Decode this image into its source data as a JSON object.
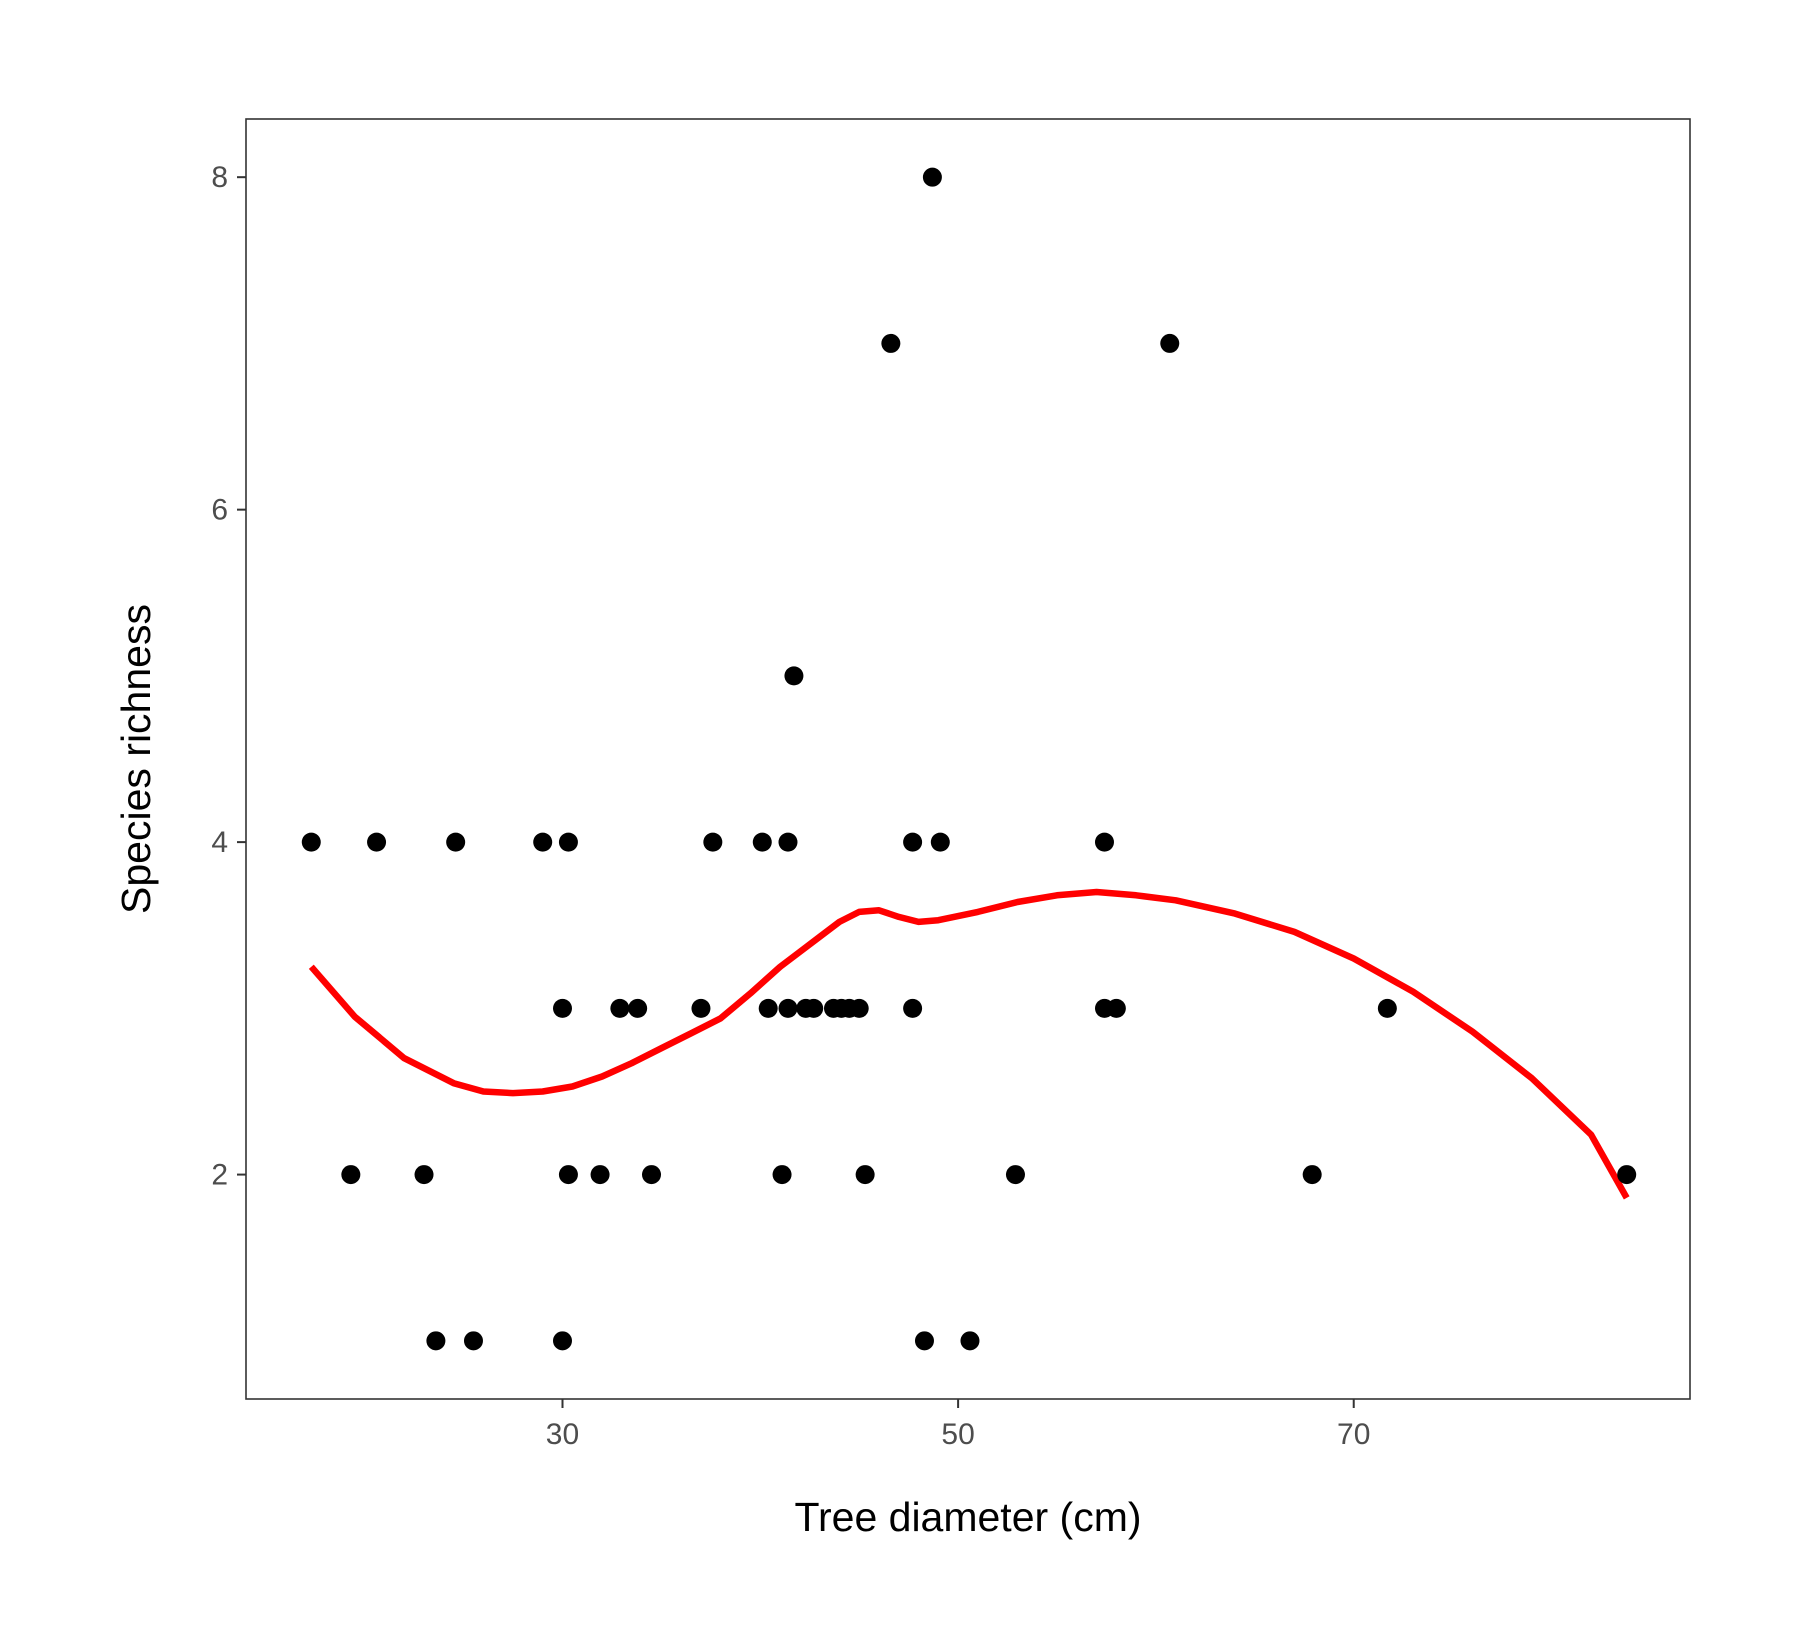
{
  "chart_data": {
    "type": "scatter",
    "title": "",
    "xlabel": "Tree diameter (cm)",
    "ylabel": "Species richness",
    "xlim": [
      14,
      87
    ],
    "ylim": [
      0.65,
      8.35
    ],
    "x_ticks": [
      30,
      50,
      70
    ],
    "y_ticks": [
      2,
      4,
      6,
      8
    ],
    "grid": false,
    "legend": "none",
    "point_color": "#000000",
    "series": [
      {
        "type": "scatter",
        "points": [
          {
            "x": 17.3,
            "y": 4
          },
          {
            "x": 20.6,
            "y": 4
          },
          {
            "x": 24.6,
            "y": 4
          },
          {
            "x": 29.0,
            "y": 4
          },
          {
            "x": 30.3,
            "y": 4
          },
          {
            "x": 37.6,
            "y": 4
          },
          {
            "x": 40.1,
            "y": 4
          },
          {
            "x": 41.4,
            "y": 4
          },
          {
            "x": 47.7,
            "y": 4
          },
          {
            "x": 49.1,
            "y": 4
          },
          {
            "x": 57.4,
            "y": 4
          },
          {
            "x": 30.0,
            "y": 3
          },
          {
            "x": 32.9,
            "y": 3
          },
          {
            "x": 33.8,
            "y": 3
          },
          {
            "x": 37.0,
            "y": 3
          },
          {
            "x": 40.4,
            "y": 3
          },
          {
            "x": 41.4,
            "y": 3
          },
          {
            "x": 42.3,
            "y": 3
          },
          {
            "x": 42.7,
            "y": 3
          },
          {
            "x": 43.7,
            "y": 3
          },
          {
            "x": 44.1,
            "y": 3
          },
          {
            "x": 44.5,
            "y": 3
          },
          {
            "x": 45.0,
            "y": 3
          },
          {
            "x": 47.7,
            "y": 3
          },
          {
            "x": 57.4,
            "y": 3
          },
          {
            "x": 58.0,
            "y": 3
          },
          {
            "x": 71.7,
            "y": 3
          },
          {
            "x": 19.3,
            "y": 2
          },
          {
            "x": 23.0,
            "y": 2
          },
          {
            "x": 30.3,
            "y": 2
          },
          {
            "x": 31.9,
            "y": 2
          },
          {
            "x": 34.5,
            "y": 2
          },
          {
            "x": 41.1,
            "y": 2
          },
          {
            "x": 45.3,
            "y": 2
          },
          {
            "x": 52.9,
            "y": 2
          },
          {
            "x": 67.9,
            "y": 2
          },
          {
            "x": 83.8,
            "y": 2
          },
          {
            "x": 23.6,
            "y": 1
          },
          {
            "x": 25.5,
            "y": 1
          },
          {
            "x": 30.0,
            "y": 1
          },
          {
            "x": 48.3,
            "y": 1
          },
          {
            "x": 50.6,
            "y": 1
          },
          {
            "x": 46.6,
            "y": 7
          },
          {
            "x": 60.7,
            "y": 7
          },
          {
            "x": 48.7,
            "y": 8
          },
          {
            "x": 41.7,
            "y": 5
          }
        ]
      },
      {
        "type": "line",
        "color": "#ff0000",
        "points": [
          {
            "x": 17.3,
            "y": 3.25
          },
          {
            "x": 19.5,
            "y": 2.95
          },
          {
            "x": 22.0,
            "y": 2.7
          },
          {
            "x": 24.5,
            "y": 2.55
          },
          {
            "x": 26.0,
            "y": 2.5
          },
          {
            "x": 27.5,
            "y": 2.49
          },
          {
            "x": 29.0,
            "y": 2.5
          },
          {
            "x": 30.5,
            "y": 2.53
          },
          {
            "x": 32.0,
            "y": 2.59
          },
          {
            "x": 33.5,
            "y": 2.67
          },
          {
            "x": 35.0,
            "y": 2.76
          },
          {
            "x": 36.5,
            "y": 2.85
          },
          {
            "x": 38.0,
            "y": 2.94
          },
          {
            "x": 39.5,
            "y": 3.09
          },
          {
            "x": 41.0,
            "y": 3.25
          },
          {
            "x": 42.0,
            "y": 3.34
          },
          {
            "x": 43.0,
            "y": 3.43
          },
          {
            "x": 44.0,
            "y": 3.52
          },
          {
            "x": 45.0,
            "y": 3.58
          },
          {
            "x": 46.0,
            "y": 3.59
          },
          {
            "x": 47.0,
            "y": 3.55
          },
          {
            "x": 48.0,
            "y": 3.52
          },
          {
            "x": 49.0,
            "y": 3.53
          },
          {
            "x": 51.0,
            "y": 3.58
          },
          {
            "x": 53.0,
            "y": 3.64
          },
          {
            "x": 55.0,
            "y": 3.68
          },
          {
            "x": 57.0,
            "y": 3.7
          },
          {
            "x": 59.0,
            "y": 3.68
          },
          {
            "x": 61.0,
            "y": 3.65
          },
          {
            "x": 64.0,
            "y": 3.57
          },
          {
            "x": 67.0,
            "y": 3.46
          },
          {
            "x": 70.0,
            "y": 3.3
          },
          {
            "x": 73.0,
            "y": 3.1
          },
          {
            "x": 76.0,
            "y": 2.86
          },
          {
            "x": 79.0,
            "y": 2.58
          },
          {
            "x": 82.0,
            "y": 2.24
          },
          {
            "x": 83.8,
            "y": 1.86
          }
        ]
      }
    ]
  }
}
